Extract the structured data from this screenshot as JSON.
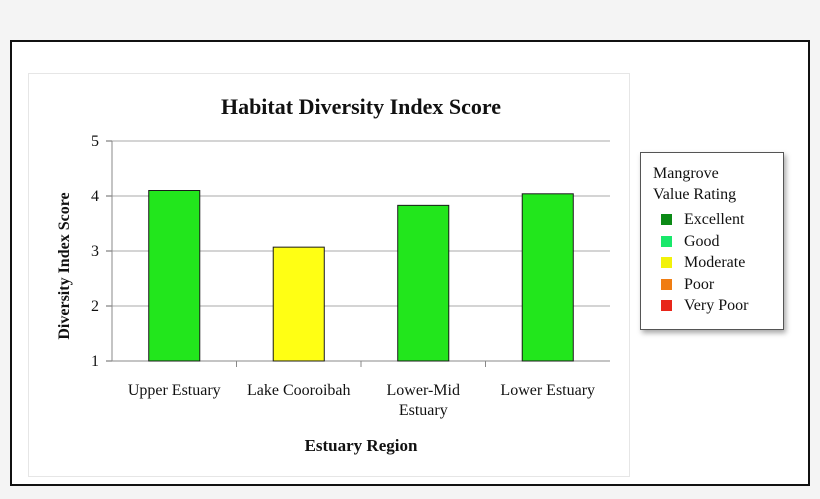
{
  "chart_data": {
    "type": "bar",
    "title": "Habitat Diversity Index Score",
    "xlabel": "Estuary Region",
    "ylabel": "Diversity Index Score",
    "categories": [
      [
        "Upper Estuary"
      ],
      [
        "Lake Cooroibah"
      ],
      [
        "Lower-Mid",
        "Estuary"
      ],
      [
        "Lower Estuary"
      ]
    ],
    "values": [
      4.1,
      3.07,
      3.83,
      4.04
    ],
    "bar_ratings": [
      "Good",
      "Moderate",
      "Good",
      "Good"
    ],
    "ylim": [
      1,
      5
    ],
    "yticks": [
      1,
      2,
      3,
      4,
      5
    ],
    "grid": true
  },
  "legend": {
    "title_lines": [
      "Mangrove",
      "Value Rating"
    ],
    "items": [
      {
        "label": "Excellent",
        "color": "#0b8a16"
      },
      {
        "label": "Good",
        "color": "#19e86b"
      },
      {
        "label": "Moderate",
        "color": "#f2f20a"
      },
      {
        "label": "Poor",
        "color": "#f07d12"
      },
      {
        "label": "Very Poor",
        "color": "#e8261a"
      }
    ]
  },
  "colors": {
    "bar_good": "#22e61c",
    "bar_moderate": "#ffff14",
    "bar_stroke": "#1a1a1a",
    "grid": "#a8a8a8"
  }
}
